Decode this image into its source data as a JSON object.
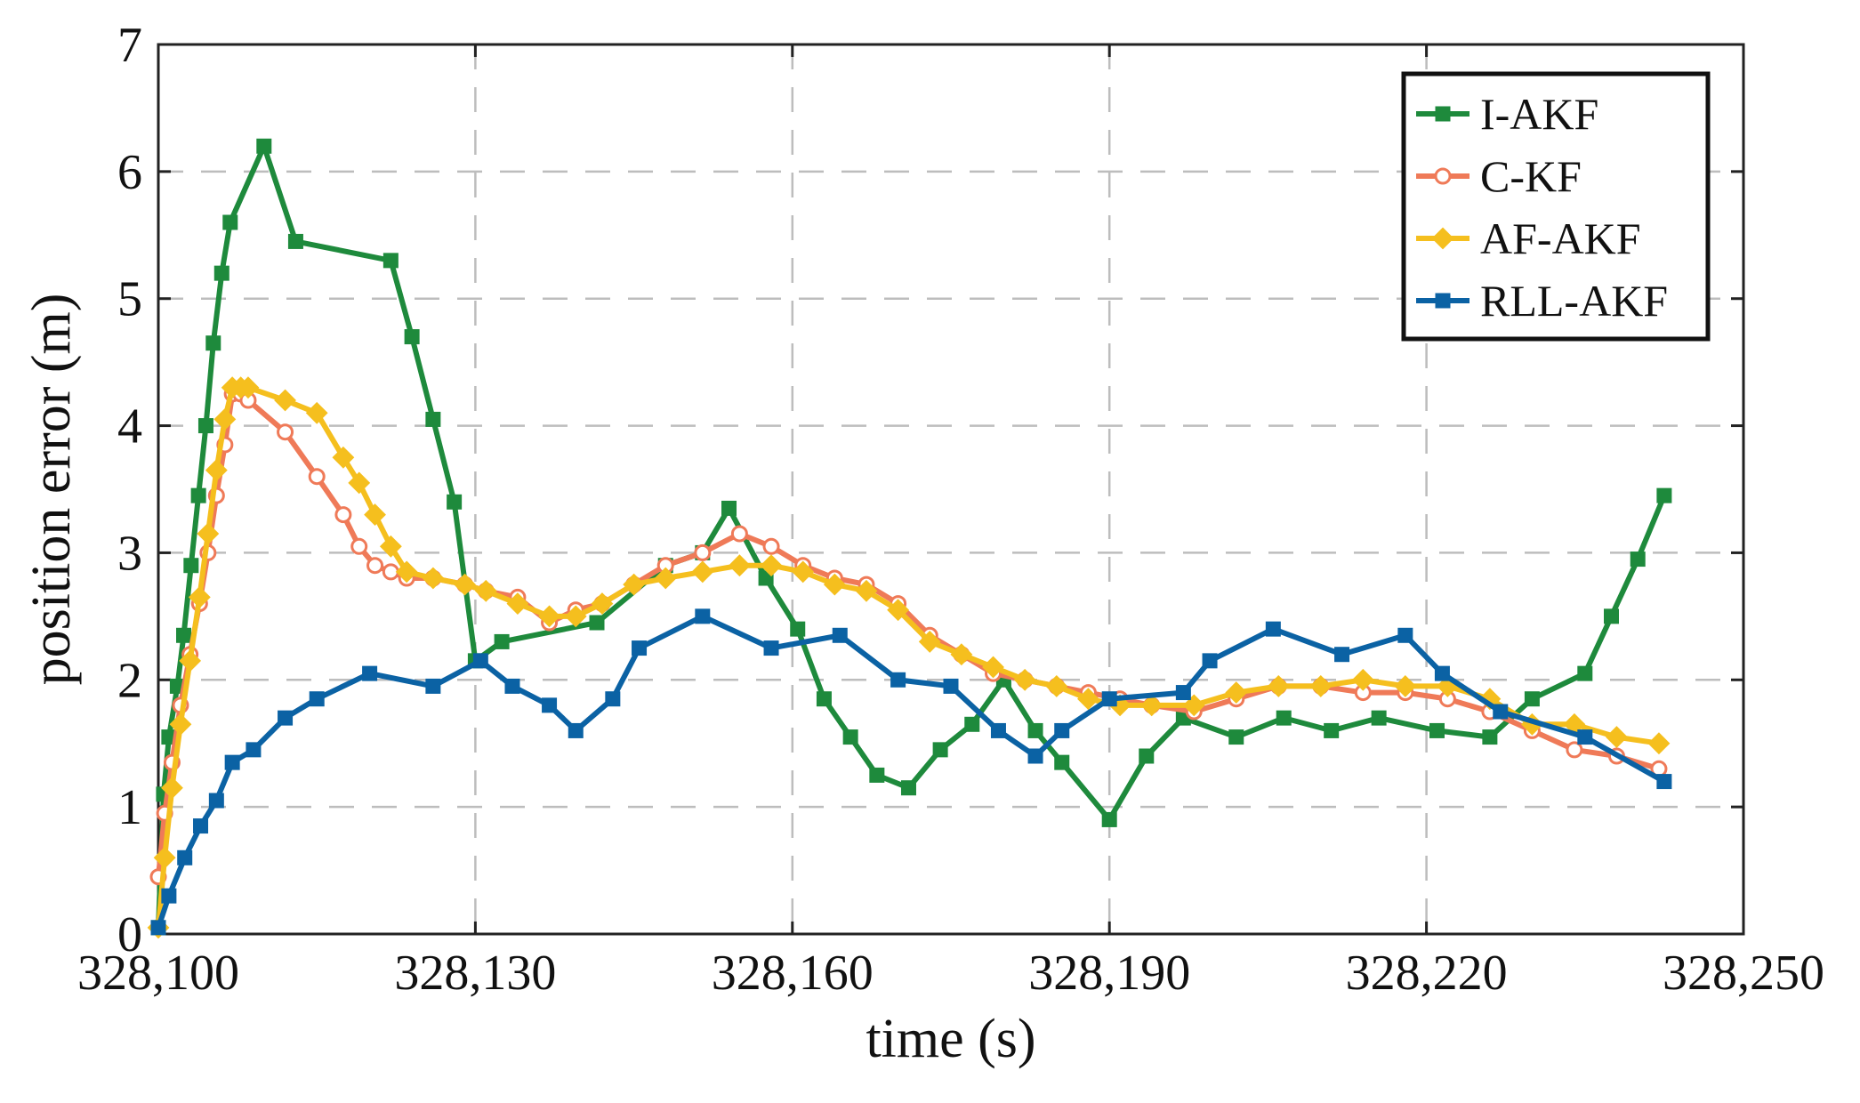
{
  "chart_data": {
    "type": "line",
    "title": "",
    "xlabel": "time (s)",
    "ylabel": "position error (m)",
    "xlim": [
      328100,
      328250
    ],
    "ylim": [
      0,
      7
    ],
    "xticks": [
      328100,
      328130,
      328160,
      328190,
      328220,
      328250
    ],
    "xtick_labels": [
      "328,100",
      "328,130",
      "328,160",
      "328,190",
      "328,220",
      "328,250"
    ],
    "yticks": [
      0,
      1,
      2,
      3,
      4,
      5,
      6,
      7
    ],
    "ytick_labels": [
      "0",
      "1",
      "2",
      "3",
      "4",
      "5",
      "6",
      "7"
    ],
    "grid": true,
    "legend_position": "top-right",
    "series": [
      {
        "name": "I-AKF",
        "color": "#1e8a3c",
        "marker": "square",
        "x": [
          328100,
          328100.5,
          328101,
          328101.8,
          328102.4,
          328103.1,
          328103.8,
          328104.5,
          328105.2,
          328106,
          328106.8,
          328110,
          328113,
          328122,
          328124,
          328126,
          328128,
          328130,
          328132.5,
          328141.5,
          328148,
          328151.5,
          328154,
          328157.5,
          328160.5,
          328163,
          328165.5,
          328168,
          328171,
          328174,
          328177,
          328180,
          328183,
          328185.5,
          328190,
          328193.5,
          328197,
          328202,
          328206.5,
          328211,
          328215.5,
          328221,
          328226,
          328230,
          328235,
          328237.5,
          328240,
          328242.5
        ],
        "y": [
          0.05,
          1.1,
          1.55,
          1.95,
          2.35,
          2.9,
          3.45,
          4.0,
          4.65,
          5.2,
          5.6,
          6.2,
          5.45,
          5.3,
          4.7,
          4.05,
          3.4,
          2.15,
          2.3,
          2.45,
          2.9,
          3.0,
          3.35,
          2.8,
          2.4,
          1.85,
          1.55,
          1.25,
          1.15,
          1.45,
          1.65,
          2.0,
          1.6,
          1.35,
          0.9,
          1.4,
          1.7,
          1.55,
          1.7,
          1.6,
          1.7,
          1.6,
          1.55,
          1.85,
          2.05,
          2.5,
          2.95,
          3.45
        ]
      },
      {
        "name": "C-KF",
        "color": "#ef7a58",
        "marker": "circle",
        "x": [
          328100,
          328100.6,
          328101.3,
          328102.1,
          328103,
          328103.9,
          328104.7,
          328105.5,
          328106.3,
          328107,
          328107.8,
          328108.5,
          328112,
          328115,
          328117.5,
          328119,
          328120.5,
          328122,
          328123.5,
          328126,
          328129,
          328131,
          328134,
          328137,
          328139.5,
          328142,
          328145,
          328148,
          328151.5,
          328155,
          328158,
          328161,
          328164,
          328167,
          328170,
          328173,
          328176,
          328179,
          328182,
          328185,
          328188,
          328191,
          328194,
          328198,
          328202,
          328206,
          328210,
          328214,
          328218,
          328222,
          328226,
          328230,
          328234,
          328238,
          328242
        ],
        "y": [
          0.45,
          0.95,
          1.35,
          1.8,
          2.2,
          2.6,
          3.0,
          3.45,
          3.85,
          4.25,
          4.25,
          4.2,
          3.95,
          3.6,
          3.3,
          3.05,
          2.9,
          2.85,
          2.8,
          2.8,
          2.75,
          2.7,
          2.65,
          2.45,
          2.55,
          2.6,
          2.75,
          2.9,
          3.0,
          3.15,
          3.05,
          2.9,
          2.8,
          2.75,
          2.6,
          2.35,
          2.2,
          2.05,
          2.0,
          1.95,
          1.9,
          1.85,
          1.8,
          1.75,
          1.85,
          1.95,
          1.95,
          1.9,
          1.9,
          1.85,
          1.75,
          1.6,
          1.45,
          1.4,
          1.3
        ]
      },
      {
        "name": "AF-AKF",
        "color": "#f5bf1e",
        "marker": "diamond",
        "x": [
          328100,
          328100.6,
          328101.3,
          328102.1,
          328103,
          328103.9,
          328104.7,
          328105.5,
          328106.3,
          328107,
          328107.8,
          328108.5,
          328112,
          328115,
          328117.5,
          328119,
          328120.5,
          328122,
          328123.5,
          328126,
          328129,
          328131,
          328134,
          328137,
          328139.5,
          328142,
          328145,
          328148,
          328151.5,
          328155,
          328158,
          328161,
          328164,
          328167,
          328170,
          328173,
          328176,
          328179,
          328182,
          328185,
          328188,
          328191,
          328194,
          328198,
          328202,
          328206,
          328210,
          328214,
          328218,
          328222,
          328226,
          328230,
          328234,
          328238,
          328242
        ],
        "y": [
          0.05,
          0.6,
          1.15,
          1.65,
          2.15,
          2.65,
          3.15,
          3.65,
          4.05,
          4.3,
          4.3,
          4.3,
          4.2,
          4.1,
          3.75,
          3.55,
          3.3,
          3.05,
          2.85,
          2.8,
          2.75,
          2.7,
          2.6,
          2.5,
          2.5,
          2.6,
          2.75,
          2.8,
          2.85,
          2.9,
          2.9,
          2.85,
          2.75,
          2.7,
          2.55,
          2.3,
          2.2,
          2.1,
          2.0,
          1.95,
          1.85,
          1.8,
          1.8,
          1.8,
          1.9,
          1.95,
          1.95,
          2.0,
          1.95,
          1.95,
          1.85,
          1.65,
          1.65,
          1.55,
          1.5
        ]
      },
      {
        "name": "RLL-AKF",
        "color": "#0b62a4",
        "marker": "square",
        "x": [
          328100,
          328101,
          328102.5,
          328104,
          328105.5,
          328107,
          328109,
          328112,
          328115,
          328120,
          328126,
          328130.5,
          328133.5,
          328137,
          328139.5,
          328143,
          328145.5,
          328151.5,
          328158,
          328164.5,
          328170,
          328175,
          328179.5,
          328183,
          328185.5,
          328190,
          328197,
          328199.5,
          328205.5,
          328212,
          328218,
          328221.5,
          328227,
          328235,
          328242.5
        ],
        "y": [
          0.05,
          0.3,
          0.6,
          0.85,
          1.05,
          1.35,
          1.45,
          1.7,
          1.85,
          2.05,
          1.95,
          2.15,
          1.95,
          1.8,
          1.6,
          1.85,
          2.25,
          2.5,
          2.25,
          2.35,
          2.0,
          1.95,
          1.6,
          1.4,
          1.6,
          1.85,
          1.9,
          2.15,
          2.4,
          2.2,
          2.35,
          2.05,
          1.75,
          1.55,
          1.2
        ]
      }
    ]
  }
}
